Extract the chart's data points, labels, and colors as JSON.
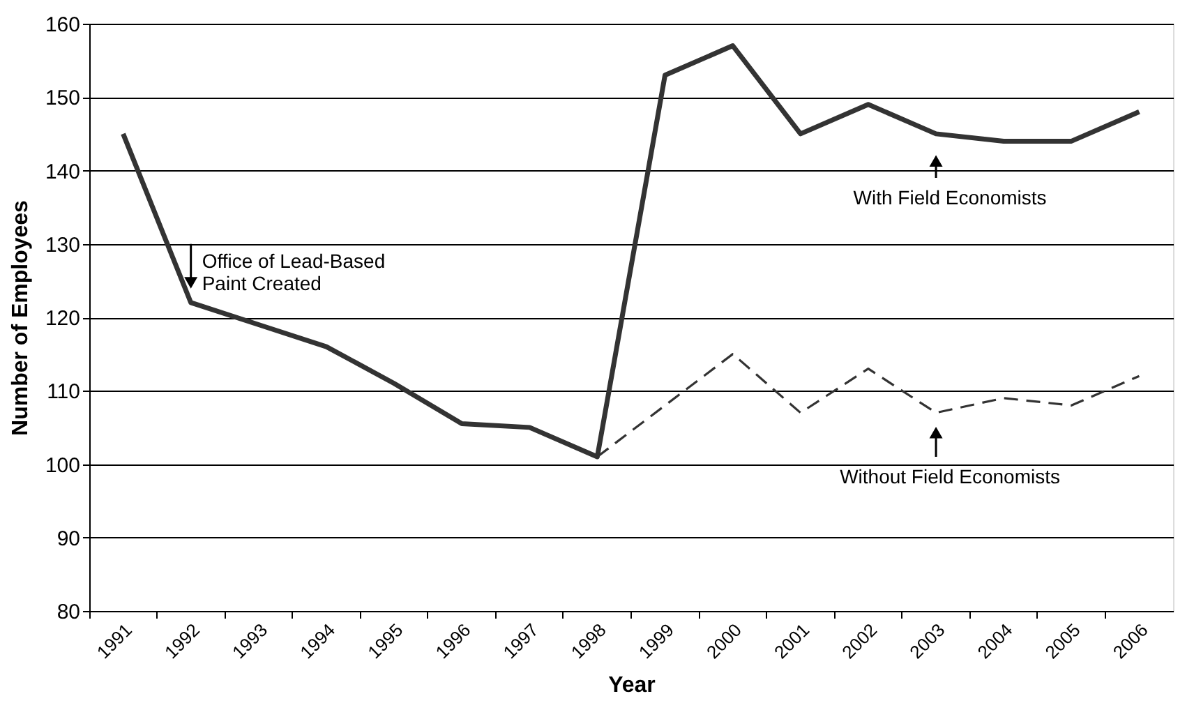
{
  "chart_data": {
    "type": "line",
    "xlabel": "Year",
    "ylabel": "Number of Employees",
    "categories": [
      "1991",
      "1992",
      "1993",
      "1994",
      "1995",
      "1996",
      "1997",
      "1998",
      "1999",
      "2000",
      "2001",
      "2002",
      "2003",
      "2004",
      "2005",
      "2006"
    ],
    "series": [
      {
        "color": "#333333",
        "line_style": "solid",
        "values": [
          145,
          122,
          119,
          116,
          111,
          105.5,
          105,
          101,
          153,
          157,
          145,
          149,
          145,
          144,
          144,
          148
        ]
      },
      {
        "color": "#333333",
        "line_style": "dashed",
        "values": [
          null,
          null,
          null,
          null,
          null,
          null,
          null,
          101,
          108,
          115,
          107,
          113,
          107,
          109,
          108,
          112
        ]
      }
    ],
    "ylim": [
      80,
      160
    ],
    "yticks": [
      80,
      90,
      100,
      110,
      120,
      130,
      140,
      150,
      160
    ],
    "grid": "y",
    "marker": "none",
    "annotations": [
      {
        "text": "Office of Lead-Based Paint Created",
        "x": "1992",
        "y": 122
      },
      {
        "text": "With Field Economists",
        "x": "2003",
        "y": 145
      },
      {
        "text": "Without Field Economists",
        "x": "2003",
        "y": 107
      }
    ]
  }
}
